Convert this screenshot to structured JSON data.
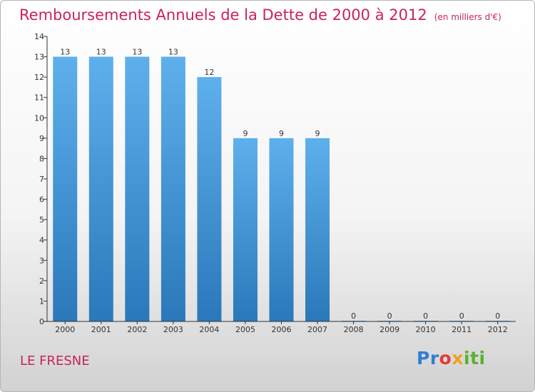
{
  "chart_data": {
    "type": "bar",
    "title": "Remboursements Annuels de la Dette de 2000 à 2012",
    "unit_note": "(en milliers d'€)",
    "categories": [
      "2000",
      "2001",
      "2002",
      "2003",
      "2004",
      "2005",
      "2006",
      "2007",
      "2008",
      "2009",
      "2010",
      "2011",
      "2012"
    ],
    "values": [
      13,
      13,
      13,
      13,
      12,
      9,
      9,
      9,
      0,
      0,
      0,
      0,
      0
    ],
    "value_labels": [
      "13",
      "13",
      "13",
      "13",
      "12",
      "9",
      "9",
      "9",
      "0",
      "0",
      "0",
      "0",
      "0"
    ],
    "ylim": [
      0,
      14
    ],
    "yticks": [
      0,
      1,
      2,
      3,
      4,
      5,
      6,
      7,
      8,
      9,
      10,
      11,
      12,
      13,
      14
    ],
    "xlabel": "",
    "ylabel": "",
    "grid": false,
    "legend": "none",
    "colors": {
      "bar_light": "#5eb0ec",
      "bar_dark": "#2a78ba",
      "title": "#c8235a",
      "axis": "#333333"
    }
  },
  "footer": {
    "place_name": "LE FRESNE",
    "logo_text": "Proxiti"
  }
}
